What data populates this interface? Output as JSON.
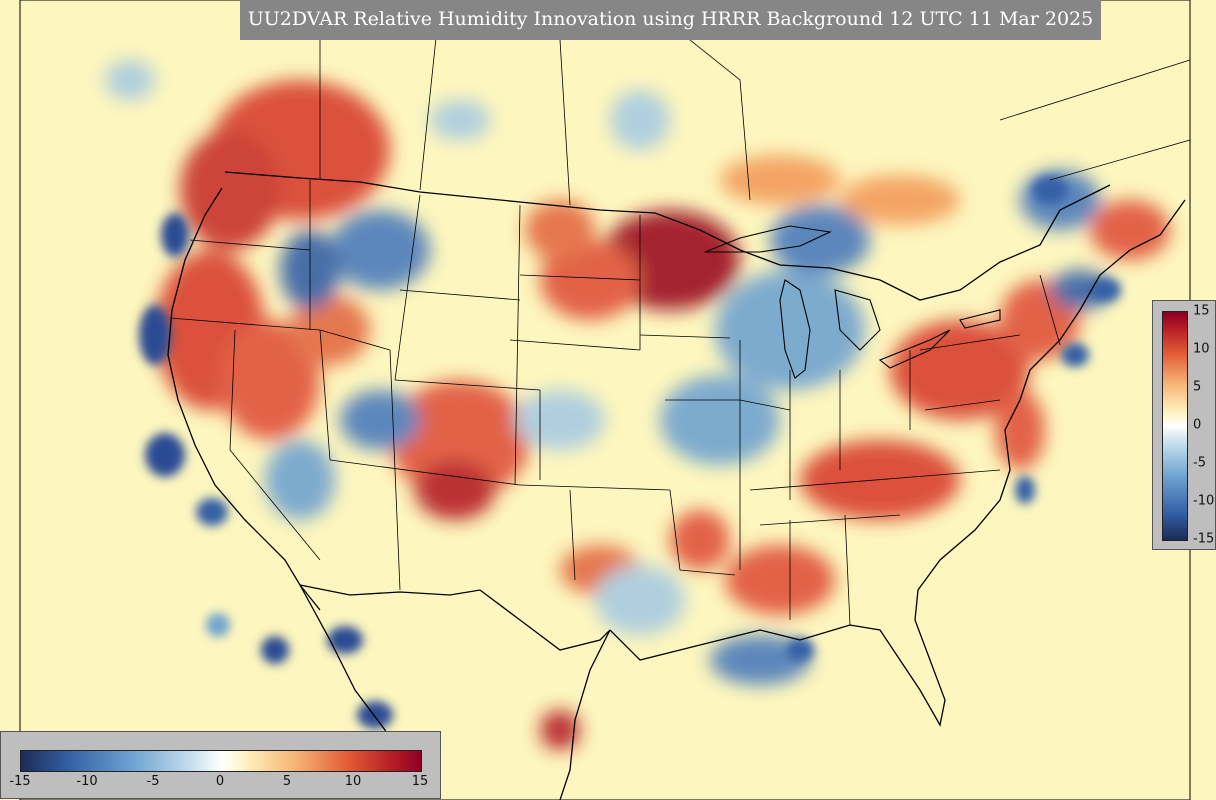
{
  "title": "UU2DVAR Relative Humidity Innovation using HRRR Background 12 UTC 11 Mar 2025",
  "colorbar": {
    "min": -15,
    "max": 15,
    "right_ticks": [
      "15",
      "10",
      "5",
      "0",
      "-5",
      "-10",
      "-15"
    ],
    "bottom_ticks": [
      "-15",
      "-10",
      "-5",
      "0",
      "5",
      "10",
      "15"
    ]
  },
  "colors": {
    "background": "#fdf6be",
    "strong_positive": "#9b0d22",
    "positive": "#e0523a",
    "weak_positive": "#f7b77b",
    "weak_negative": "#a7cbe2",
    "negative": "#4c7cbc",
    "strong_negative": "#1f3d86",
    "title_bar": "#868686",
    "colorbar_box": "#bebebe"
  }
}
